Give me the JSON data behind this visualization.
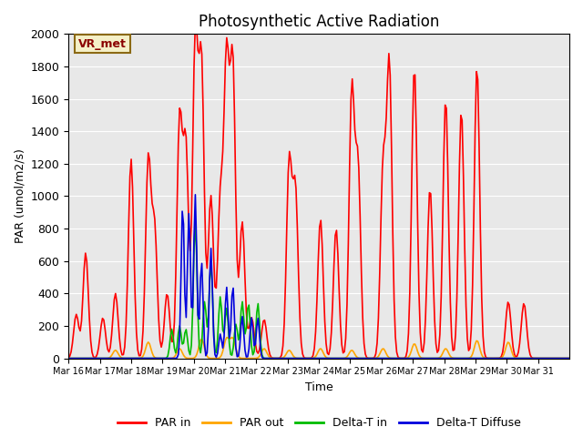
{
  "title": "Photosynthetic Active Radiation",
  "ylabel": "PAR (umol/m2/s)",
  "xlabel": "Time",
  "ylim": [
    0,
    2000
  ],
  "bg_color": "#e8e8e8",
  "label_box_text": "VR_met",
  "xtick_labels": [
    "Mar 16",
    "Mar 17",
    "Mar 18",
    "Mar 19",
    "Mar 20",
    "Mar 21",
    "Mar 22",
    "Mar 23",
    "Mar 24",
    "Mar 25",
    "Mar 26",
    "Mar 27",
    "Mar 28",
    "Mar 29",
    "Mar 30",
    "Mar 31"
  ],
  "legend_labels": [
    "PAR in",
    "PAR out",
    "Delta-T in",
    "Delta-T Diffuse"
  ],
  "colors": {
    "par_in": "#ff0000",
    "par_out": "#ffa500",
    "delta_t_in": "#00bb00",
    "delta_t_diffuse": "#0000dd"
  },
  "series_linewidth": 1.2
}
